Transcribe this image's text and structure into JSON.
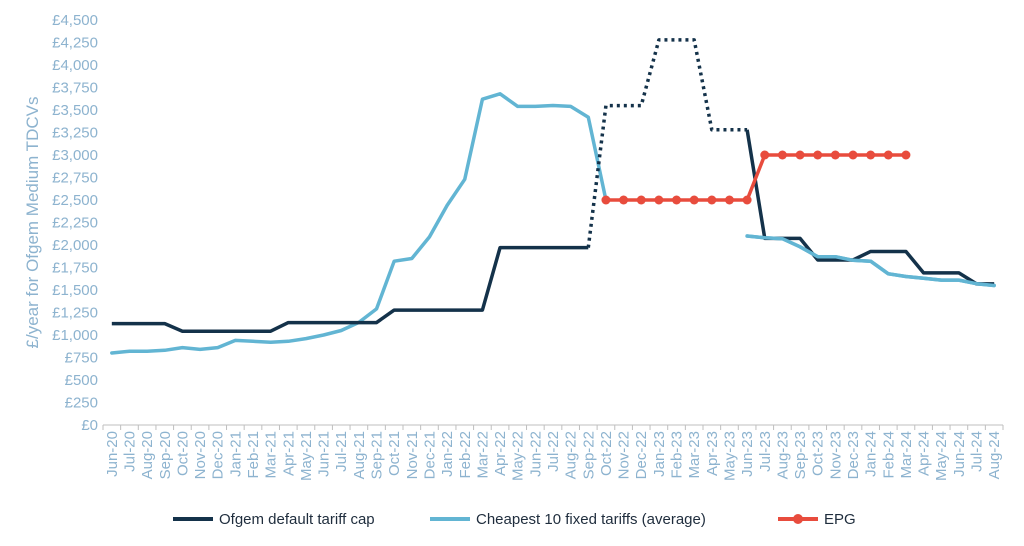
{
  "chart_data": {
    "type": "line",
    "title": "",
    "xlabel": "",
    "ylabel": "£/year for Ofgem Medium TDCVs",
    "ylim": [
      0,
      4500
    ],
    "y_ticks": [
      "£0",
      "£250",
      "£500",
      "£750",
      "£1,000",
      "£1,250",
      "£1,500",
      "£1,750",
      "£2,000",
      "£2,250",
      "£2,500",
      "£2,750",
      "£3,000",
      "£3,250",
      "£3,500",
      "£3,750",
      "£4,000",
      "£4,250",
      "£4,500"
    ],
    "y_tick_values": [
      0,
      250,
      500,
      750,
      1000,
      1250,
      1500,
      1750,
      2000,
      2250,
      2500,
      2750,
      3000,
      3250,
      3500,
      3750,
      4000,
      4250,
      4500
    ],
    "categories": [
      "Jun-20",
      "Jul-20",
      "Aug-20",
      "Sep-20",
      "Oct-20",
      "Nov-20",
      "Dec-20",
      "Jan-21",
      "Feb-21",
      "Mar-21",
      "Apr-21",
      "May-21",
      "Jun-21",
      "Jul-21",
      "Aug-21",
      "Sep-21",
      "Oct-21",
      "Nov-21",
      "Dec-21",
      "Jan-22",
      "Feb-22",
      "Mar-22",
      "Apr-22",
      "May-22",
      "Jun-22",
      "Jul-22",
      "Aug-22",
      "Sep-22",
      "Oct-22",
      "Nov-22",
      "Dec-22",
      "Jan-23",
      "Feb-23",
      "Mar-23",
      "Apr-23",
      "May-23",
      "Jun-23",
      "Jul-23",
      "Aug-23",
      "Sep-23",
      "Oct-23",
      "Nov-23",
      "Dec-23",
      "Jan-24",
      "Feb-24",
      "Mar-24",
      "Apr-24",
      "May-24",
      "Jun-24",
      "Jul-24",
      "Aug-24"
    ],
    "grid": false,
    "legend_position": "bottom",
    "colors": {
      "cap": "#14324a",
      "fixed": "#62b5d3",
      "epg": "#e84c3d",
      "axis": "#bfbfbf"
    },
    "series": [
      {
        "name": "Ofgem default tariff cap",
        "style": "solid-dotted",
        "values": [
          1126,
          1126,
          1126,
          1126,
          1042,
          1042,
          1042,
          1042,
          1042,
          1042,
          1138,
          1138,
          1138,
          1138,
          1138,
          1138,
          1277,
          1277,
          1277,
          1277,
          1277,
          1277,
          1971,
          1971,
          1971,
          1971,
          1971,
          1971,
          3549,
          3549,
          3549,
          4279,
          4279,
          4279,
          3280,
          3280,
          3280,
          2074,
          2074,
          2074,
          1834,
          1834,
          1834,
          1928,
          1928,
          1928,
          1690,
          1690,
          1690,
          1568,
          1568
        ],
        "dotted_from_index": 27,
        "dotted_to_index": 36
      },
      {
        "name": "Cheapest 10 fixed tariffs (average)",
        "style": "solid",
        "values": [
          800,
          820,
          820,
          830,
          860,
          840,
          860,
          940,
          930,
          920,
          930,
          960,
          1000,
          1050,
          1140,
          1290,
          1820,
          1850,
          2090,
          2440,
          2730,
          3620,
          3680,
          3540,
          3540,
          3550,
          3540,
          3420,
          2500,
          null,
          null,
          null,
          null,
          null,
          null,
          null,
          2100,
          2080,
          2070,
          1980,
          1870,
          1870,
          1830,
          1820,
          1680,
          1650,
          1630,
          1610,
          1610,
          1570,
          1550
        ]
      },
      {
        "name": "EPG",
        "style": "markers",
        "values": [
          null,
          null,
          null,
          null,
          null,
          null,
          null,
          null,
          null,
          null,
          null,
          null,
          null,
          null,
          null,
          null,
          null,
          null,
          null,
          null,
          null,
          null,
          null,
          null,
          null,
          null,
          null,
          null,
          2500,
          2500,
          2500,
          2500,
          2500,
          2500,
          2500,
          2500,
          2500,
          3000,
          3000,
          3000,
          3000,
          3000,
          3000,
          3000,
          3000,
          3000,
          null,
          null,
          null,
          null,
          null
        ]
      }
    ]
  }
}
